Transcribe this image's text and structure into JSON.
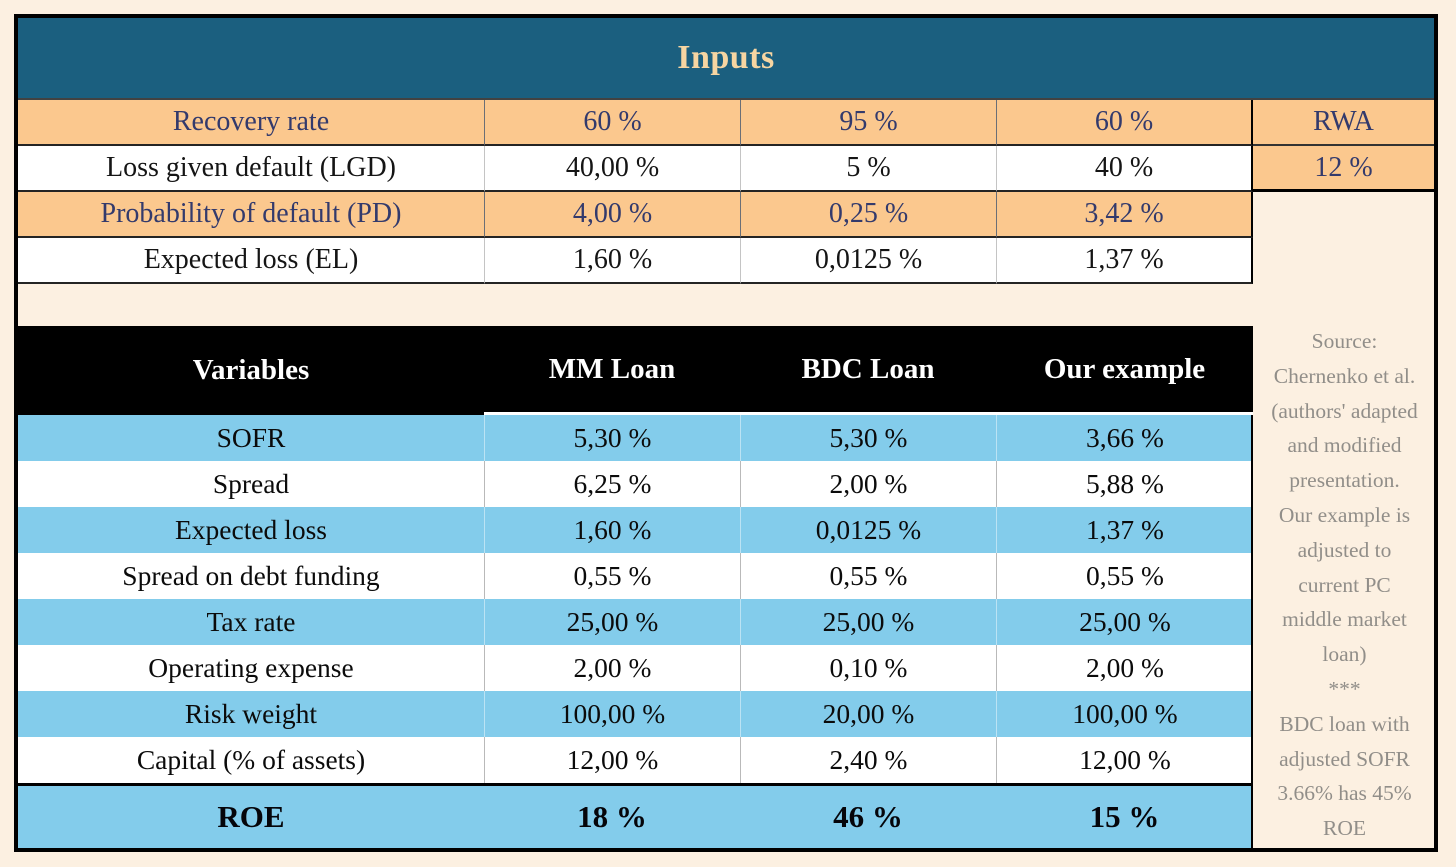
{
  "palette": {
    "background_cream": "#FCF0E1",
    "header_teal": "#1B5F7F",
    "header_gold_text": "#F6D5A2",
    "row_orange": "#FBC88E",
    "navy_text": "#333A6C",
    "row_blue": "#83CCEB",
    "table_header_black": "#000000",
    "note_gray_text": "#918E89"
  },
  "inputs_table": {
    "title": "Inputs",
    "rows": [
      {
        "label": "Recovery rate",
        "values": [
          "60 %",
          "95 %",
          "60 %"
        ]
      },
      {
        "label": "Loss given default (LGD)",
        "values": [
          "40,00 %",
          "5 %",
          "40 %"
        ]
      },
      {
        "label": "Probability of default (PD)",
        "values": [
          "4,00 %",
          "0,25 %",
          "3,42 %"
        ]
      },
      {
        "label": "Expected loss (EL)",
        "values": [
          "1,60 %",
          "0,0125 %",
          "1,37 %"
        ]
      }
    ],
    "rwa": {
      "header": "RWA",
      "value": "12 %"
    }
  },
  "variables_table": {
    "headers": [
      "Variables",
      "MM Loan",
      "BDC Loan",
      "Our example"
    ],
    "rows": [
      {
        "label": "SOFR",
        "values": [
          "5,30 %",
          "5,30 %",
          "3,66 %"
        ]
      },
      {
        "label": "Spread",
        "values": [
          "6,25 %",
          "2,00 %",
          "5,88 %"
        ]
      },
      {
        "label": "Expected loss",
        "values": [
          "1,60 %",
          "0,0125 %",
          "1,37 %"
        ]
      },
      {
        "label": "Spread on debt funding",
        "values": [
          "0,55 %",
          "0,55 %",
          "0,55 %"
        ]
      },
      {
        "label": "Tax rate",
        "values": [
          "25,00 %",
          "25,00 %",
          "25,00 %"
        ]
      },
      {
        "label": "Operating expense",
        "values": [
          "2,00 %",
          "0,10 %",
          "2,00 %"
        ]
      },
      {
        "label": "Risk weight",
        "values": [
          "100,00 %",
          "20,00 %",
          "100,00 %"
        ]
      },
      {
        "label": "Capital (% of assets)",
        "values": [
          "12,00 %",
          "2,40 %",
          "12,00 %"
        ]
      }
    ],
    "total_row": {
      "label": "ROE",
      "values": [
        "18 %",
        "46 %",
        "15 %"
      ]
    }
  },
  "side_note": {
    "lines": [
      "Source:",
      "Chernenko et al.",
      "(authors' adapted",
      "and modified",
      "presentation.",
      "Our example is",
      "adjusted to",
      "current PC",
      "middle market",
      "loan)",
      "***",
      "BDC loan with",
      "adjusted SOFR",
      "3.66% has 45%",
      "ROE"
    ]
  },
  "chart_data": [
    {
      "type": "table",
      "title": "Inputs",
      "rows": [
        [
          "Recovery rate",
          "60 %",
          "95 %",
          "60 %"
        ],
        [
          "Loss given default (LGD)",
          "40,00 %",
          "5 %",
          "40 %"
        ],
        [
          "Probability of default (PD)",
          "4,00 %",
          "0,25 %",
          "3,42 %"
        ],
        [
          "Expected loss (EL)",
          "1,60 %",
          "0,0125 %",
          "1,37 %"
        ]
      ],
      "extra_column": {
        "header": "RWA",
        "value": "12 %"
      }
    },
    {
      "type": "table",
      "columns": [
        "Variables",
        "MM Loan",
        "BDC Loan",
        "Our example"
      ],
      "rows": [
        [
          "SOFR",
          "5,30 %",
          "5,30 %",
          "3,66 %"
        ],
        [
          "Spread",
          "6,25 %",
          "2,00 %",
          "5,88 %"
        ],
        [
          "Expected loss",
          "1,60 %",
          "0,0125 %",
          "1,37 %"
        ],
        [
          "Spread on debt funding",
          "0,55 %",
          "0,55 %",
          "0,55 %"
        ],
        [
          "Tax rate",
          "25,00 %",
          "25,00 %",
          "25,00 %"
        ],
        [
          "Operating expense",
          "2,00 %",
          "0,10 %",
          "2,00 %"
        ],
        [
          "Risk weight",
          "100,00 %",
          "20,00 %",
          "100,00 %"
        ],
        [
          "Capital (% of assets)",
          "12,00 %",
          "2,40 %",
          "12,00 %"
        ],
        [
          "ROE",
          "18 %",
          "46 %",
          "15 %"
        ]
      ]
    }
  ]
}
